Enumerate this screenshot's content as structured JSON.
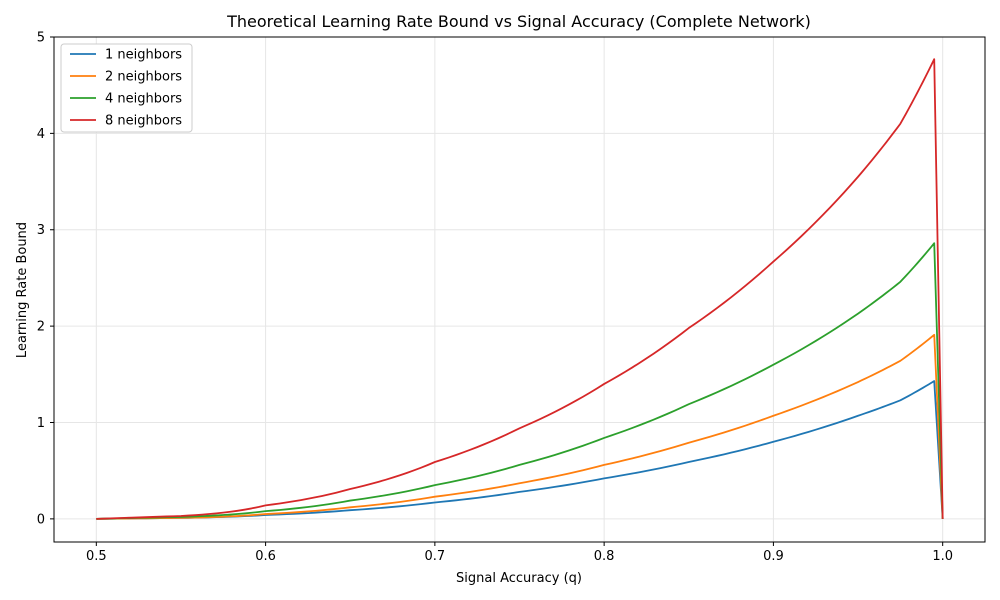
{
  "chart_data": {
    "type": "line",
    "title": "Theoretical Learning Rate Bound vs Signal Accuracy (Complete Network)",
    "xlabel": "Signal Accuracy (q)",
    "ylabel": "Learning Rate Bound",
    "xlim": [
      0.475,
      1.025
    ],
    "ylim": [
      -0.24,
      5.0
    ],
    "xticks": [
      0.5,
      0.6,
      0.7,
      0.8,
      0.9,
      1.0
    ],
    "xtick_labels": [
      "0.5",
      "0.6",
      "0.7",
      "0.8",
      "0.9",
      "1.0"
    ],
    "yticks": [
      0,
      1,
      2,
      3,
      4,
      5
    ],
    "ytick_labels": [
      "0",
      "1",
      "2",
      "3",
      "4",
      "5"
    ],
    "grid": true,
    "legend_position": "upper-left",
    "x": [
      0.5,
      0.55,
      0.6,
      0.65,
      0.7,
      0.75,
      0.8,
      0.85,
      0.9,
      0.95,
      0.975,
      0.995,
      1.0
    ],
    "series": [
      {
        "name": "1 neighbors",
        "color": "#1f77b4",
        "values": [
          0.0,
          0.01,
          0.04,
          0.09,
          0.17,
          0.28,
          0.42,
          0.59,
          0.8,
          1.07,
          1.23,
          1.43,
          0.0
        ]
      },
      {
        "name": "2 neighbors",
        "color": "#ff7f0e",
        "values": [
          0.0,
          0.01,
          0.05,
          0.12,
          0.23,
          0.37,
          0.56,
          0.79,
          1.07,
          1.42,
          1.64,
          1.91,
          0.0
        ]
      },
      {
        "name": "4 neighbors",
        "color": "#2ca02c",
        "values": [
          0.0,
          0.02,
          0.08,
          0.19,
          0.35,
          0.56,
          0.84,
          1.19,
          1.6,
          2.13,
          2.46,
          2.86,
          0.0
        ]
      },
      {
        "name": "8 neighbors",
        "color": "#d62728",
        "values": [
          0.0,
          0.03,
          0.14,
          0.31,
          0.59,
          0.94,
          1.4,
          1.98,
          2.67,
          3.55,
          4.1,
          4.77,
          0.0
        ]
      }
    ]
  }
}
